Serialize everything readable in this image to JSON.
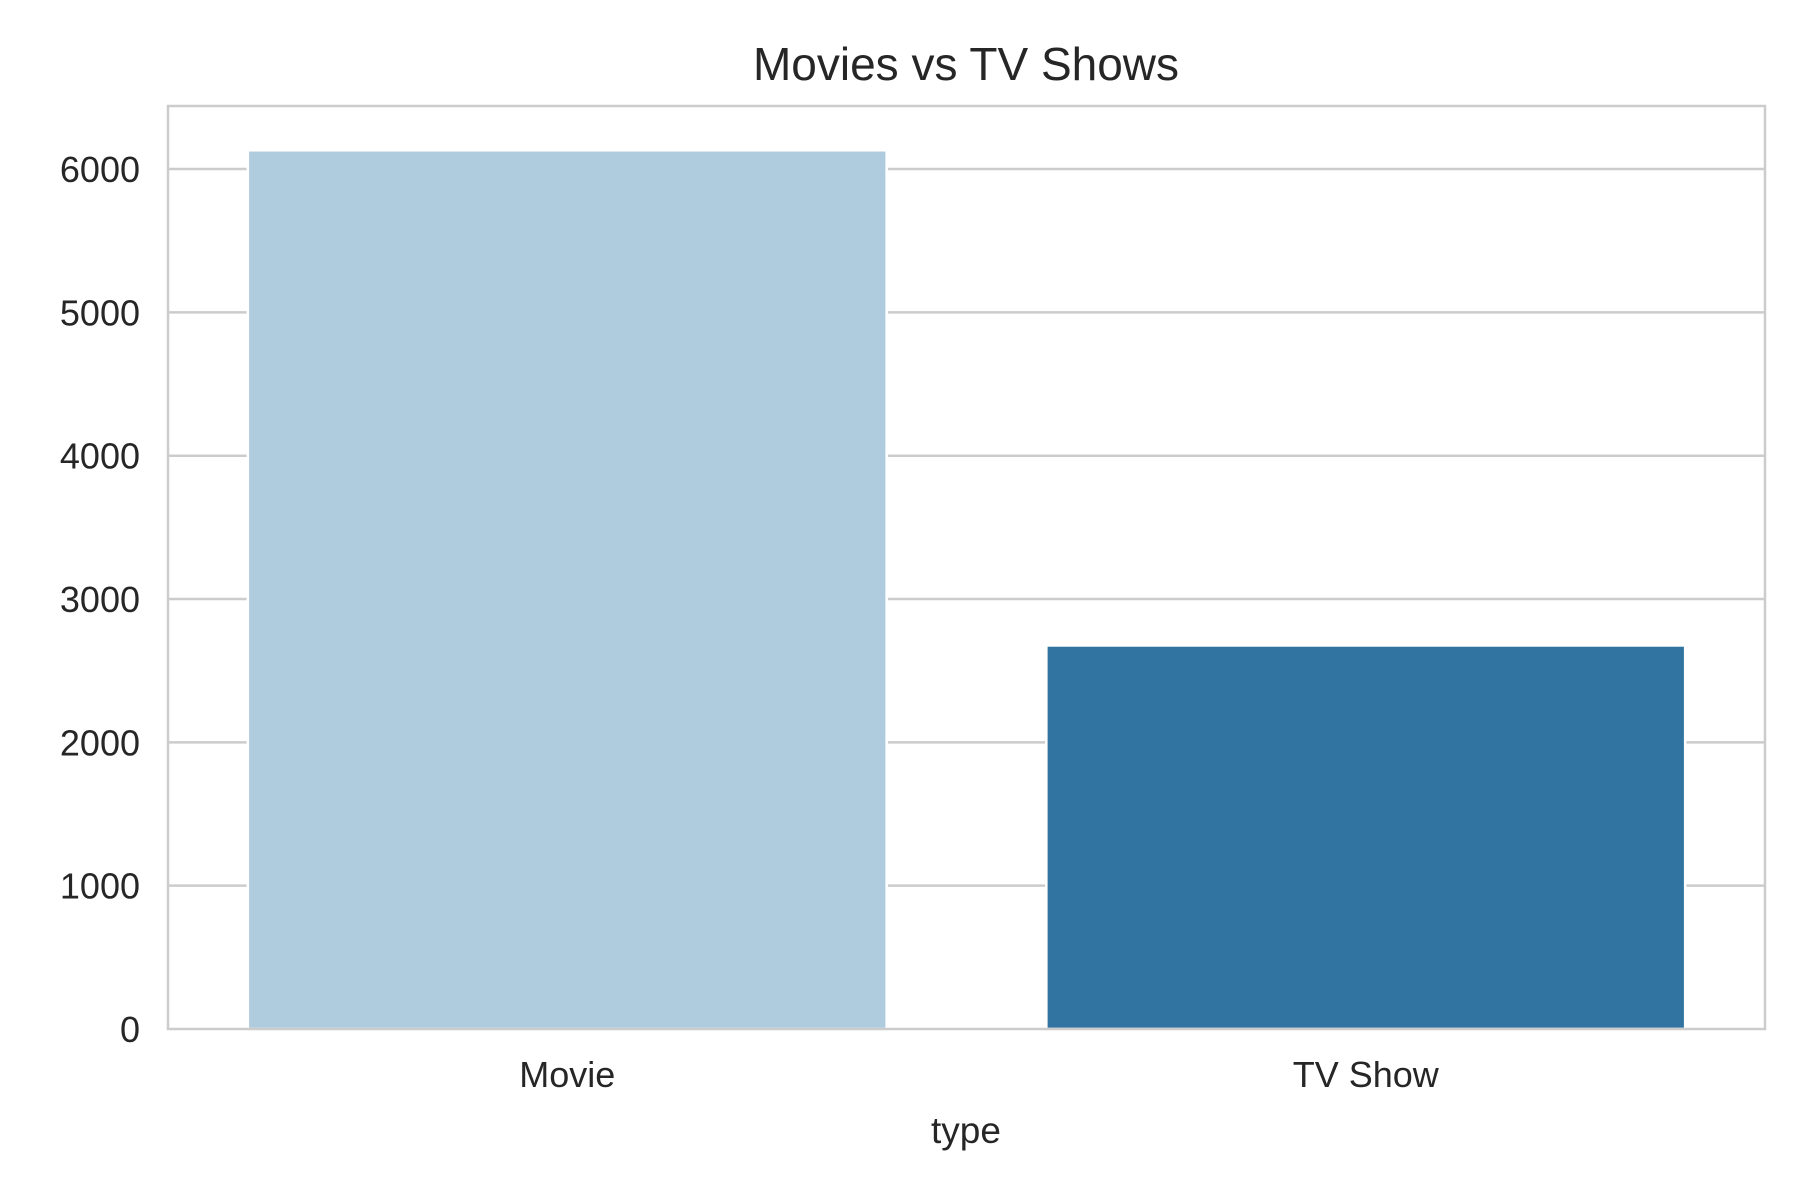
{
  "chart_data": {
    "type": "bar",
    "title": "Movies vs TV Shows",
    "xlabel": "type",
    "ylabel": "",
    "categories": [
      "Movie",
      "TV Show"
    ],
    "values": [
      6131,
      2676
    ],
    "colors": [
      "#afcbde",
      "#3274a1"
    ],
    "ylim": [
      0,
      6440
    ],
    "yticks": [
      0,
      1000,
      2000,
      3000,
      4000,
      5000,
      6000
    ],
    "ytick_labels": [
      "0",
      "1000",
      "2000",
      "3000",
      "4000",
      "5000",
      "6000"
    ],
    "grid": true,
    "grid_color": "#cccccc",
    "frame_color": "#cccccc",
    "legend": "none"
  }
}
